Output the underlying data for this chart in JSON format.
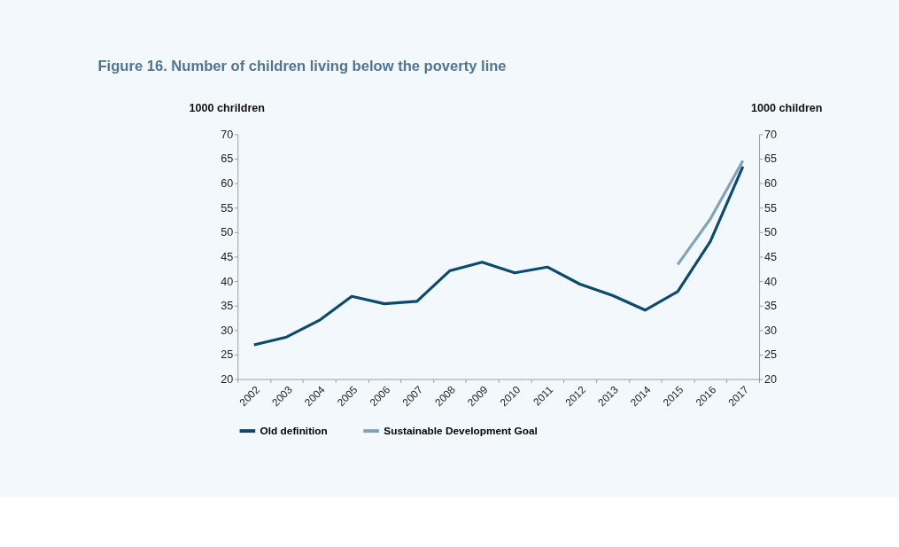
{
  "chart_data": {
    "type": "line",
    "title": "Figure 16. Number of children living below the poverty line",
    "ylabel": "1000 chrildren",
    "y2label": "1000 children",
    "categories": [
      "2002",
      "2003",
      "2004",
      "2005",
      "2006",
      "2007",
      "2008",
      "2009",
      "2010",
      "2011",
      "2012",
      "2013",
      "2014",
      "2015",
      "2016",
      "2017"
    ],
    "series": [
      {
        "name": "Old definition",
        "color": "#0b4a6f",
        "values": [
          27.0,
          28.6,
          32.0,
          36.9,
          35.4,
          35.9,
          42.1,
          43.9,
          41.7,
          42.9,
          39.4,
          37.1,
          34.1,
          37.9,
          48.1,
          63.4
        ]
      },
      {
        "name": "Sustainable Development Goal",
        "color": "#7fa3ba",
        "axis": "y2",
        "values": [
          null,
          null,
          null,
          null,
          null,
          null,
          null,
          null,
          null,
          null,
          null,
          null,
          null,
          43.4,
          52.7,
          64.6
        ]
      }
    ],
    "ylim": [
      20,
      70
    ],
    "yticks": [
      20,
      25,
      30,
      35,
      40,
      45,
      50,
      55,
      60,
      65,
      70
    ],
    "y2lim": [
      20,
      70
    ],
    "y2ticks": [
      20,
      25,
      30,
      35,
      40,
      45,
      50,
      55,
      60,
      65,
      70
    ],
    "grid": false,
    "legend": "bottom",
    "marker": "none",
    "line_style": "solid"
  }
}
